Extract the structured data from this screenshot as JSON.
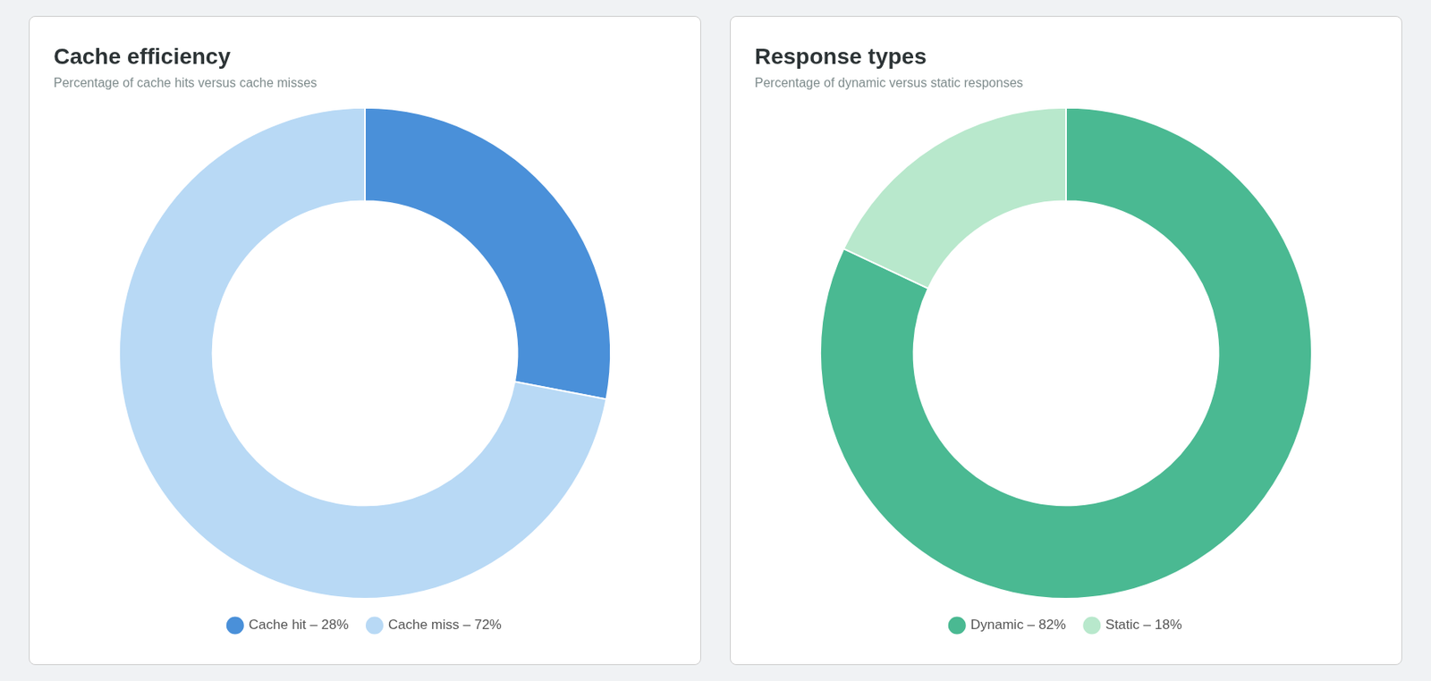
{
  "chart_data": [
    {
      "type": "doughnut",
      "title": "Cache efficiency",
      "subtitle": "Percentage of cache hits versus cache misses",
      "categories": [
        "Cache hit – 28%",
        "Cache miss – 72%"
      ],
      "values": [
        28,
        72
      ],
      "colors": [
        "#4a90d9",
        "#b8d9f5"
      ],
      "legend": "bottom"
    },
    {
      "type": "doughnut",
      "title": "Response types",
      "subtitle": "Percentage of dynamic versus static responses",
      "categories": [
        "Dynamic – 82%",
        "Static – 18%"
      ],
      "values": [
        82,
        18
      ],
      "colors": [
        "#4ab992",
        "#b8e8cc"
      ],
      "legend": "bottom"
    }
  ]
}
